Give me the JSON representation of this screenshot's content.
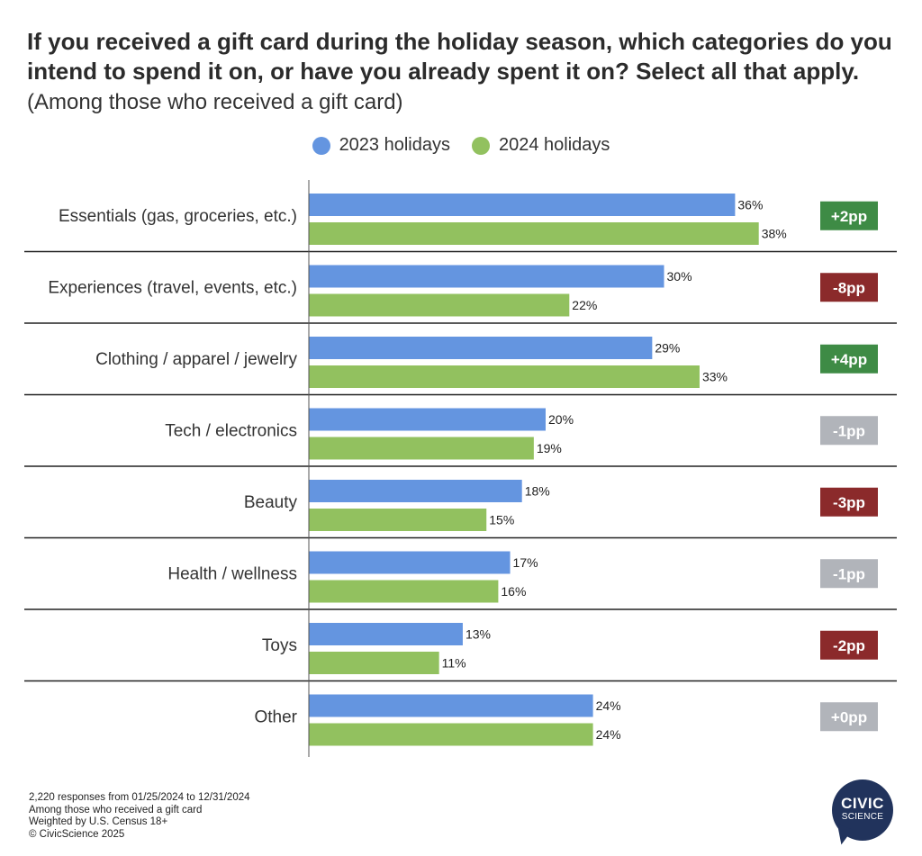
{
  "header": {
    "title": "If you received a gift card during the holiday season, which categories do you intend to spend it on, or have you already spent it on? Select all that apply.",
    "subtitle": "(Among those who received a gift card)"
  },
  "colors": {
    "series_2023": "#6495e0",
    "series_2024": "#92c15f",
    "positive": "#3e8b45",
    "negative": "#8b2a2b",
    "neutral": "#b1b4ba"
  },
  "chart_data": {
    "type": "bar",
    "orientation": "horizontal",
    "categories": [
      "Essentials (gas, groceries, etc.)",
      "Experiences (travel, events, etc.)",
      "Clothing / apparel / jewelry",
      "Tech / electronics",
      "Beauty",
      "Health / wellness",
      "Toys",
      "Other"
    ],
    "series": [
      {
        "name": "2023 holidays",
        "values": [
          36,
          30,
          29,
          20,
          18,
          17,
          13,
          24
        ]
      },
      {
        "name": "2024 holidays",
        "values": [
          38,
          22,
          33,
          19,
          15,
          16,
          11,
          24
        ]
      }
    ],
    "value_suffix": "%",
    "changes": [
      {
        "label": "+2pp",
        "status": "positive"
      },
      {
        "label": "-8pp",
        "status": "negative"
      },
      {
        "label": "+4pp",
        "status": "positive"
      },
      {
        "label": "-1pp",
        "status": "neutral"
      },
      {
        "label": "-3pp",
        "status": "negative"
      },
      {
        "label": "-1pp",
        "status": "neutral"
      },
      {
        "label": "-2pp",
        "status": "negative"
      },
      {
        "label": "+0pp",
        "status": "neutral"
      }
    ],
    "xlim": [
      0,
      42
    ],
    "grid": false,
    "legend_position": "top-center"
  },
  "footnotes": [
    "2,220 responses from 01/25/2024 to 12/31/2024",
    "Among those who received a gift card",
    "Weighted by U.S. Census 18+",
    "© CivicScience 2025"
  ],
  "logo": {
    "line1": "CIVIC",
    "line2": "SCIENCE"
  }
}
